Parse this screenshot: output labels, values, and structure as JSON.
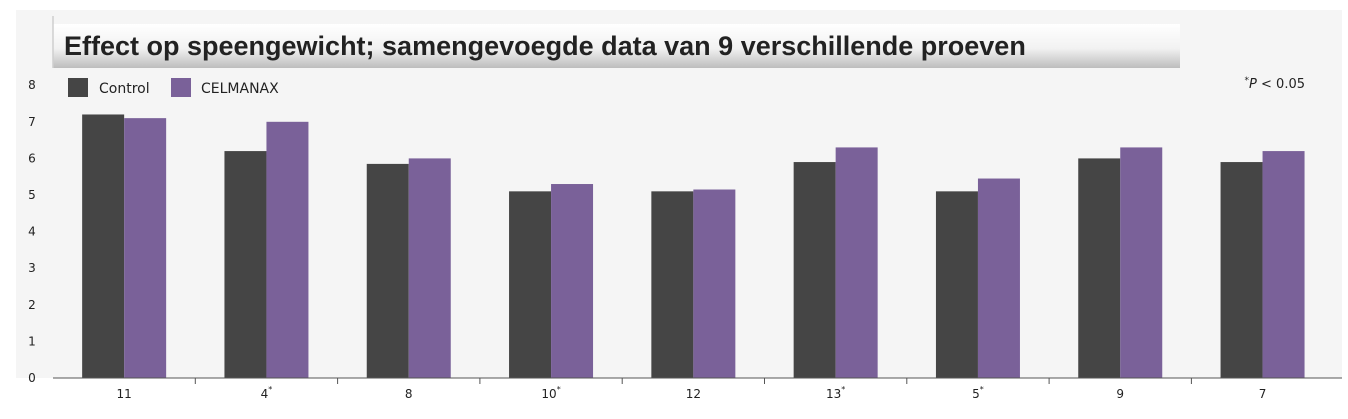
{
  "chart_data": {
    "type": "bar",
    "title": "Effect op speengewicht; samengevoegde data van 9 verschillende proeven",
    "note": "*P < 0.05",
    "categories": [
      "11",
      "4*",
      "8",
      "10*",
      "12",
      "13*",
      "5*",
      "9",
      "7"
    ],
    "series": [
      {
        "name": "Control",
        "color": "#454545",
        "values": [
          7.2,
          6.2,
          5.85,
          5.1,
          5.1,
          5.9,
          5.1,
          6.0,
          5.9
        ]
      },
      {
        "name": "CELMANAX",
        "color": "#7a6199",
        "values": [
          7.1,
          7.0,
          6.0,
          5.3,
          5.15,
          6.3,
          5.45,
          6.3,
          6.2
        ]
      }
    ],
    "y_ticks": [
      "0",
      "1",
      "2",
      "3",
      "4",
      "5",
      "6",
      "7",
      "8"
    ],
    "ylim": [
      0,
      8
    ],
    "legend_position": "top-left",
    "grid": false
  }
}
